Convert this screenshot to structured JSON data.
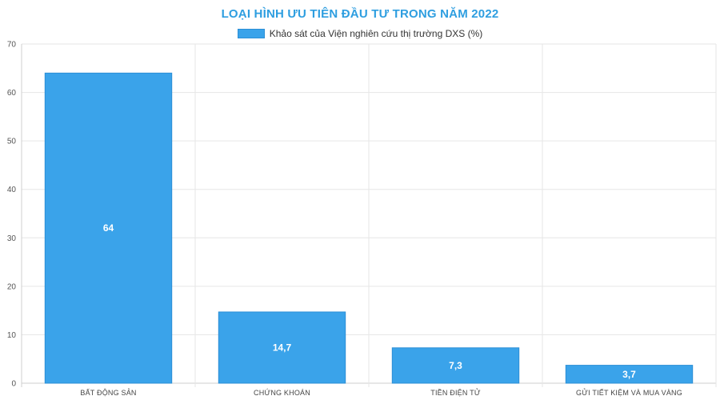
{
  "chart_data": {
    "type": "bar",
    "title": "LOẠI HÌNH ƯU TIÊN ĐẦU TƯ TRONG NĂM 2022",
    "categories": [
      "BẤT ĐỘNG SẢN",
      "CHỨNG KHOÁN",
      "TIỀN ĐIỆN TỬ",
      "GỬI TIẾT KIỆM VÀ MUA VÀNG"
    ],
    "series": [
      {
        "name": "Khảo sát của Viện nghiên cứu thị trường DXS (%)",
        "values": [
          64,
          14.7,
          7.3,
          3.7
        ],
        "labels": [
          "64",
          "14,7",
          "7,3",
          "3,7"
        ],
        "color": "#3aa3ea"
      }
    ],
    "ylim": [
      0,
      70
    ],
    "yticks": [
      0,
      10,
      20,
      30,
      40,
      50,
      60,
      70
    ],
    "xlabel": "",
    "ylabel": "",
    "grid": true,
    "legend_position": "top"
  }
}
